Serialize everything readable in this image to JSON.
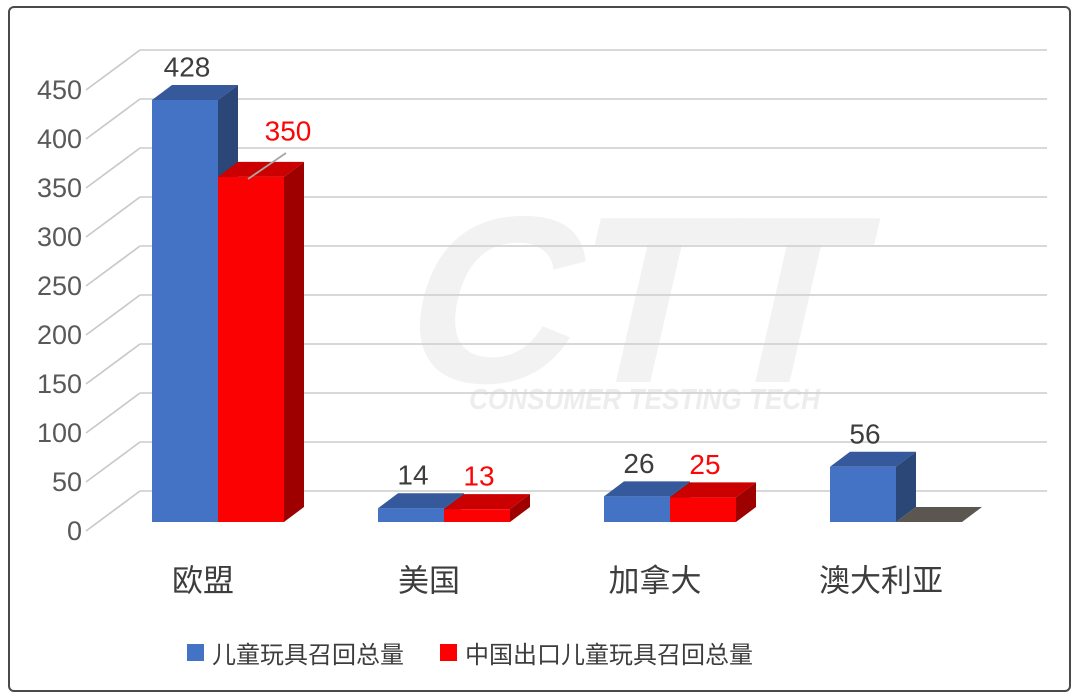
{
  "watermark": {
    "text": "CTT",
    "subtext": "CONSUMER TESTING TECH"
  },
  "chart_data": {
    "type": "bar",
    "style": "3d-clustered-column",
    "title": "",
    "xlabel": "",
    "ylabel": "",
    "categories": [
      "欧盟",
      "美国",
      "加拿大",
      "澳大利亚"
    ],
    "series": [
      {
        "name": "儿童玩具召回总量",
        "values": [
          428,
          14,
          26,
          56
        ],
        "color": "#4472c4",
        "color_top": "#35599b",
        "color_side": "#2b4777",
        "label_color": "#3d3d3d"
      },
      {
        "name": "中国出口儿童玩具召回总量",
        "values": [
          350,
          13,
          25,
          0
        ],
        "color": "#fc0101",
        "color_top": "#cb0000",
        "color_side": "#9e0000",
        "label_color": "#fb0606"
      }
    ],
    "ylim": [
      0,
      450
    ],
    "y_ticks": [
      0,
      50,
      100,
      150,
      200,
      250,
      300,
      350,
      400,
      450
    ],
    "grid": true,
    "legend_position": "bottom",
    "zero_bar_shadow_color": "#5b5650"
  },
  "colors": {
    "axis_text": "#595959",
    "category_text": "#3d3d3d",
    "gridline": "#d2d2d2",
    "tick_diagonal": "#c9c9c9",
    "leader_line": "#a6a6a6",
    "border": "#4a4a4a",
    "background": "#ffffff"
  }
}
